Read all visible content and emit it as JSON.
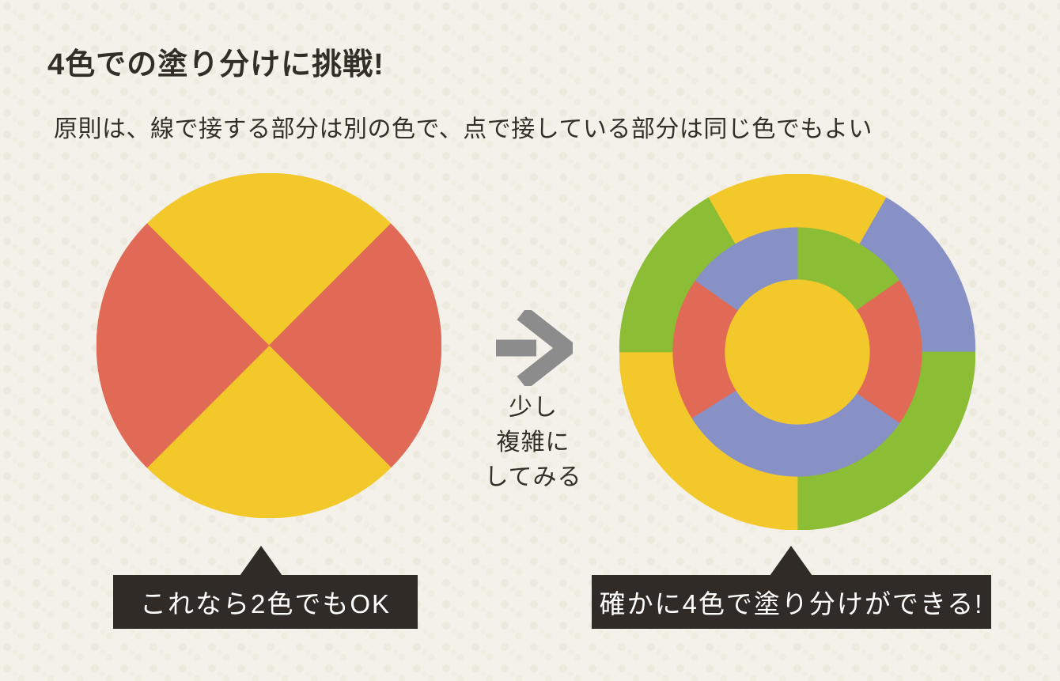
{
  "page": {
    "background": "#F4F1EA",
    "text_color": "#332E28",
    "title": "4色での塗り分けに挑戦!",
    "subtitle": "原則は、線で接する部分は別の色で、点で接している部分は同じ色でもよい"
  },
  "palette": {
    "yellow": "#F3C82B",
    "red": "#E16A56",
    "green": "#8BBD35",
    "purple": "#8891C5"
  },
  "caption_style": {
    "bg": "#302B26",
    "text_color": "#FFFFFF"
  },
  "left_figure": {
    "size": 436,
    "caption": "これなら2色でもOK",
    "rings": [
      {
        "name": "disc",
        "r_inner": 0,
        "r_outer": 218,
        "segments": [
          {
            "from": 315,
            "to": 405,
            "color": "yellow"
          },
          {
            "from": 45,
            "to": 135,
            "color": "red"
          },
          {
            "from": 135,
            "to": 225,
            "color": "yellow"
          },
          {
            "from": 225,
            "to": 315,
            "color": "red"
          }
        ]
      }
    ]
  },
  "transition": {
    "arrow_color": "#8C8C8C",
    "label_lines": [
      "少し",
      "複雑に",
      "してみる"
    ]
  },
  "right_figure": {
    "size": 450,
    "caption": "確かに4色で塗り分けができる!",
    "rings": [
      {
        "name": "center",
        "r_inner": 0,
        "r_outer": 92,
        "segments": [
          {
            "from": 0,
            "to": 360,
            "color": "yellow"
          }
        ]
      },
      {
        "name": "middle",
        "r_inner": 92,
        "r_outer": 158,
        "segments": [
          {
            "from": 0,
            "to": 55,
            "color": "green"
          },
          {
            "from": 55,
            "to": 125,
            "color": "red"
          },
          {
            "from": 125,
            "to": 238,
            "color": "purple"
          },
          {
            "from": 238,
            "to": 305,
            "color": "red"
          },
          {
            "from": 305,
            "to": 360,
            "color": "purple"
          }
        ]
      },
      {
        "name": "outer",
        "r_inner": 158,
        "r_outer": 225,
        "segments": [
          {
            "from": 330,
            "to": 390,
            "color": "yellow"
          },
          {
            "from": 30,
            "to": 90,
            "color": "purple"
          },
          {
            "from": 90,
            "to": 180,
            "color": "green"
          },
          {
            "from": 180,
            "to": 270,
            "color": "yellow"
          },
          {
            "from": 270,
            "to": 330,
            "color": "green"
          }
        ]
      }
    ]
  }
}
